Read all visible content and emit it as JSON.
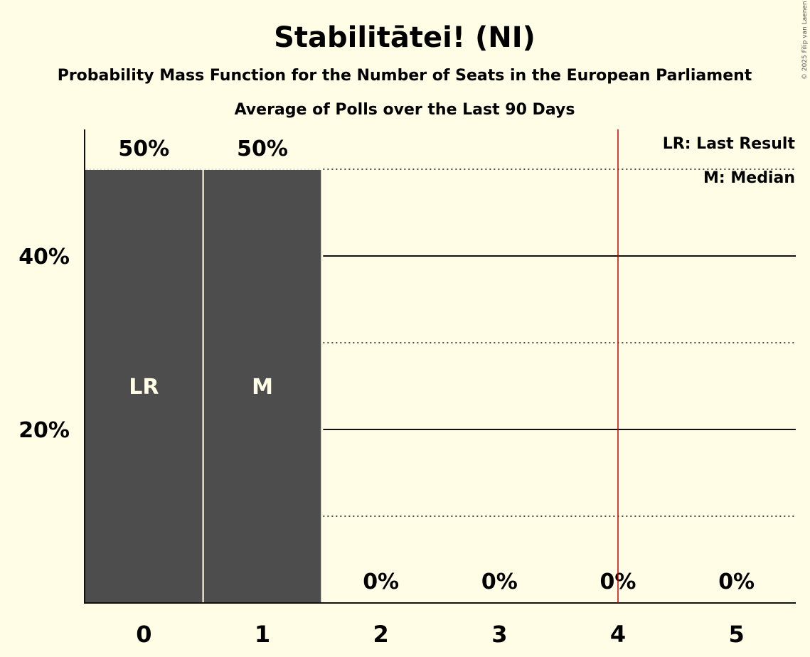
{
  "header": {
    "title": "Stabilitātei! (NI)",
    "subtitle": "Probability Mass Function for the Number of Seats in the European Parliament",
    "subtitle2": "Average of Polls over the Last 90 Days"
  },
  "copyright": "© 2025 Filip van Laenen",
  "legend": {
    "last_result": "LR: Last Result",
    "median": "M: Median"
  },
  "colors": {
    "background": "#fffde6",
    "bar": "#4d4d4d",
    "last_result_line": "#cc0000"
  },
  "chart_data": {
    "type": "bar",
    "categories": [
      "0",
      "1",
      "2",
      "3",
      "4",
      "5"
    ],
    "values": [
      50,
      50,
      0,
      0,
      0,
      0
    ],
    "data_labels": [
      "50%",
      "50%",
      "0%",
      "0%",
      "0%",
      "0%"
    ],
    "bar_marks": [
      "LR",
      "M",
      "",
      "",
      "",
      ""
    ],
    "y_ticks": [
      {
        "value": 20,
        "label": "20%"
      },
      {
        "value": 40,
        "label": "40%"
      }
    ],
    "dotted_gridlines": [
      10,
      30,
      50
    ],
    "ylim": [
      0,
      54.6
    ],
    "last_result_marker_x": 4.5,
    "grid": true,
    "legend_position": "top-right"
  }
}
